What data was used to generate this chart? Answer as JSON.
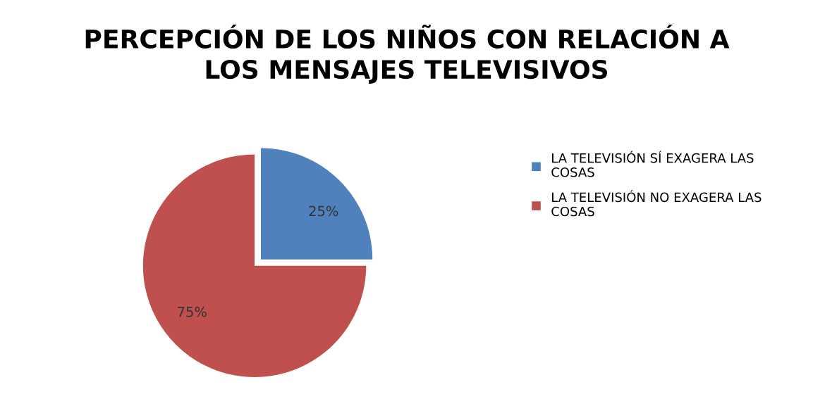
{
  "chart_data": {
    "type": "pie",
    "title": "PERCEPCIÓN DE LOS NIÑOS CON RELACIÓN A LOS MENSAJES TELEVISIVOS",
    "categories": [
      "LA TELEVISIÓN SÍ EXAGERA LAS COSAS",
      "LA TELEVISIÓN NO EXAGERA LAS COSAS"
    ],
    "values": [
      25,
      75
    ],
    "value_labels": [
      "25%",
      "75%"
    ],
    "colors": [
      "#4f81bd",
      "#c0504d"
    ],
    "legend": "right"
  }
}
